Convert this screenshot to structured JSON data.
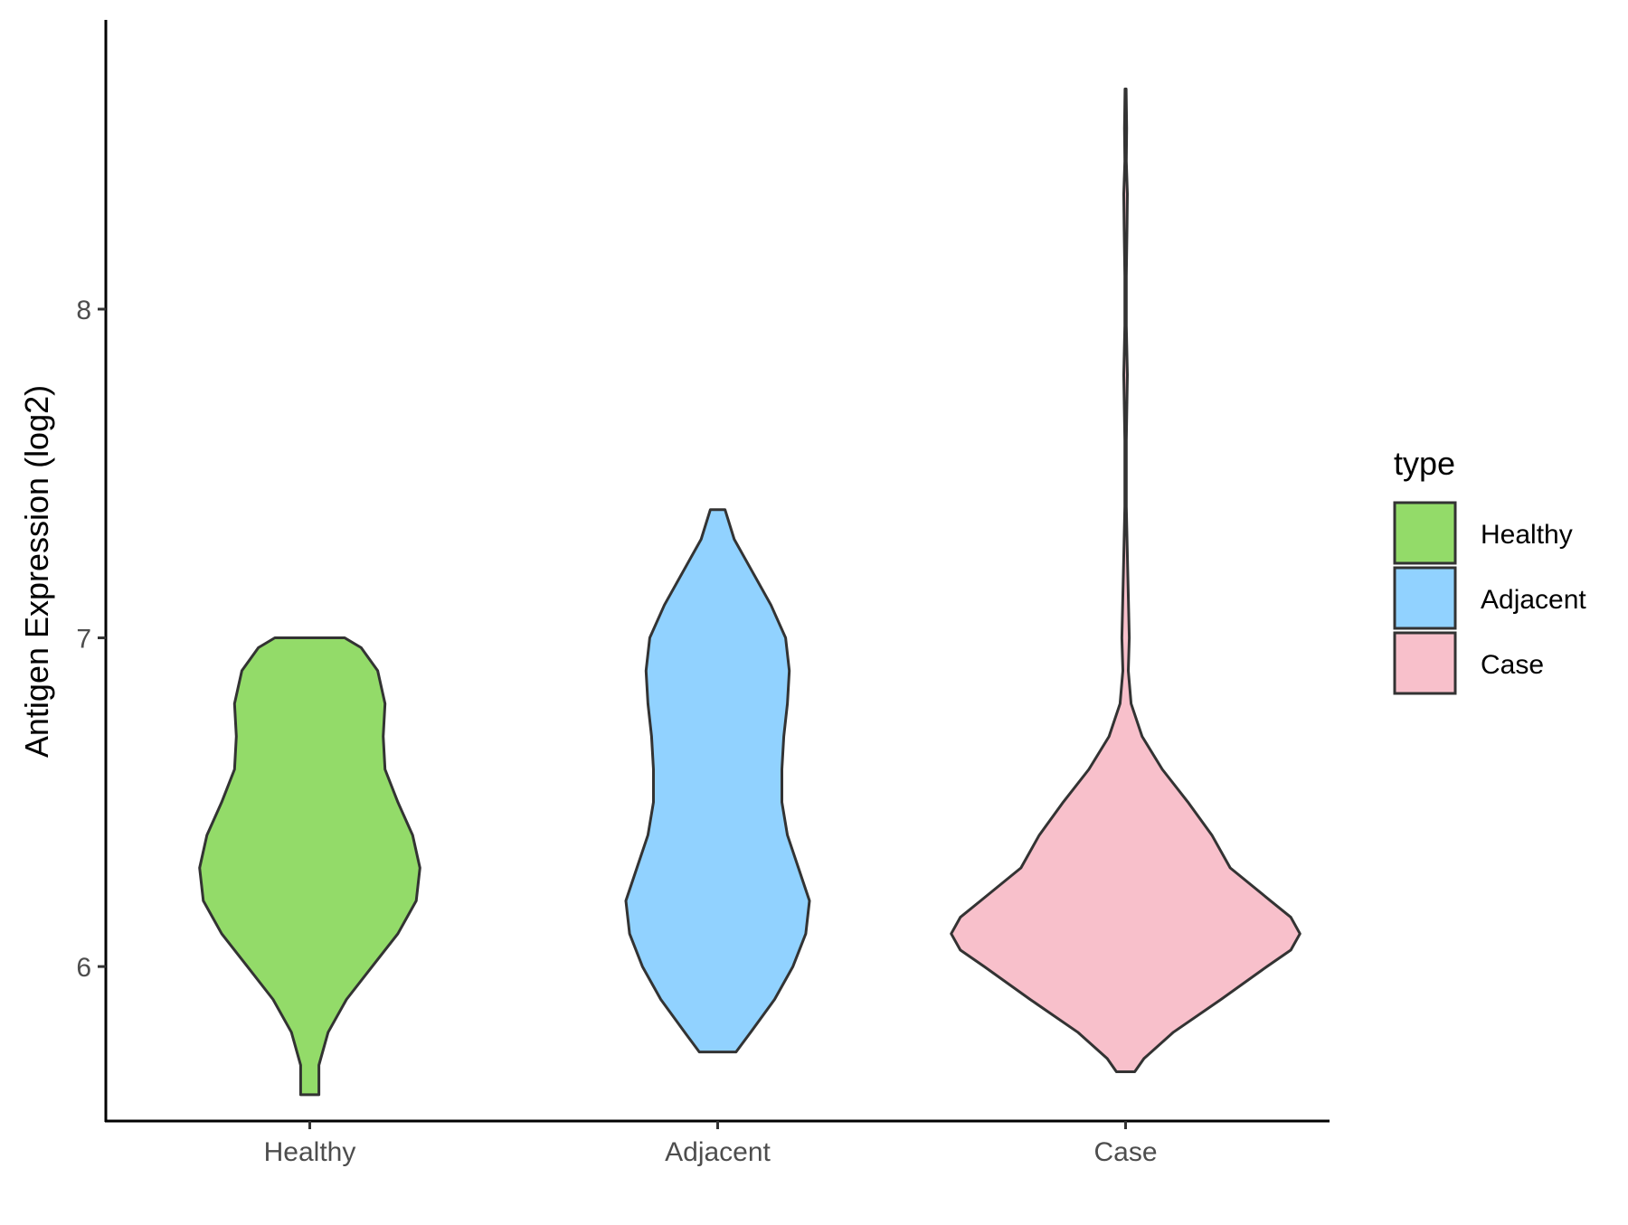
{
  "chart_data": {
    "type": "violin",
    "categories": [
      "Healthy",
      "Adjacent",
      "Case"
    ],
    "ylabel": "Antigen Expression (log2)",
    "xlabel": "",
    "ylim": [
      5.53,
      8.88
    ],
    "yticks": [
      6,
      7,
      8
    ],
    "ytick_labels": [
      "6",
      "7",
      "8"
    ],
    "grid": false,
    "legend": {
      "title": "type",
      "position": "right",
      "entries": [
        "Healthy",
        "Adjacent",
        "Case"
      ]
    },
    "colors": {
      "Healthy": "#93db69",
      "Adjacent": "#91d2ff",
      "Case": "#f8c0cb",
      "outline": "#333333"
    },
    "violins": [
      {
        "name": "Healthy",
        "profile": [
          [
            5.61,
            0.05
          ],
          [
            5.7,
            0.05
          ],
          [
            5.8,
            0.1
          ],
          [
            5.9,
            0.2
          ],
          [
            6.0,
            0.34
          ],
          [
            6.1,
            0.48
          ],
          [
            6.2,
            0.58
          ],
          [
            6.3,
            0.6
          ],
          [
            6.4,
            0.56
          ],
          [
            6.5,
            0.48
          ],
          [
            6.6,
            0.41
          ],
          [
            6.7,
            0.4
          ],
          [
            6.8,
            0.41
          ],
          [
            6.9,
            0.37
          ],
          [
            6.97,
            0.28
          ],
          [
            7.0,
            0.19
          ]
        ]
      },
      {
        "name": "Adjacent",
        "profile": [
          [
            5.74,
            0.1
          ],
          [
            5.8,
            0.18
          ],
          [
            5.9,
            0.31
          ],
          [
            6.0,
            0.41
          ],
          [
            6.1,
            0.48
          ],
          [
            6.2,
            0.5
          ],
          [
            6.3,
            0.44
          ],
          [
            6.4,
            0.38
          ],
          [
            6.5,
            0.35
          ],
          [
            6.6,
            0.35
          ],
          [
            6.7,
            0.36
          ],
          [
            6.8,
            0.38
          ],
          [
            6.9,
            0.39
          ],
          [
            7.0,
            0.37
          ],
          [
            7.1,
            0.29
          ],
          [
            7.2,
            0.19
          ],
          [
            7.3,
            0.09
          ],
          [
            7.39,
            0.04
          ]
        ]
      },
      {
        "name": "Case",
        "profile": [
          [
            5.68,
            0.05
          ],
          [
            5.72,
            0.1
          ],
          [
            5.8,
            0.26
          ],
          [
            5.9,
            0.52
          ],
          [
            6.0,
            0.77
          ],
          [
            6.05,
            0.9
          ],
          [
            6.1,
            0.95
          ],
          [
            6.15,
            0.9
          ],
          [
            6.2,
            0.79
          ],
          [
            6.3,
            0.57
          ],
          [
            6.4,
            0.47
          ],
          [
            6.5,
            0.34
          ],
          [
            6.6,
            0.2
          ],
          [
            6.7,
            0.09
          ],
          [
            6.8,
            0.03
          ],
          [
            6.9,
            0.015
          ],
          [
            7.0,
            0.02
          ],
          [
            7.2,
            0.012
          ],
          [
            7.4,
            0.004
          ],
          [
            7.6,
            0.004
          ],
          [
            7.8,
            0.01
          ],
          [
            7.95,
            0.004
          ],
          [
            8.1,
            0.004
          ],
          [
            8.25,
            0.008
          ],
          [
            8.35,
            0.01
          ],
          [
            8.45,
            0.004
          ],
          [
            8.55,
            0.006
          ],
          [
            8.67,
            0.003
          ]
        ]
      }
    ]
  }
}
